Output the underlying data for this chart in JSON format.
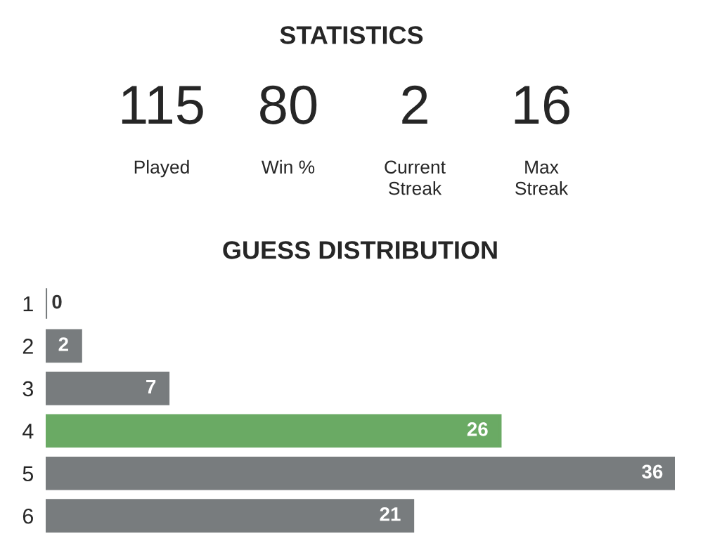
{
  "chart_data": [
    {
      "type": "other",
      "title": "STATISTICS",
      "categories": [
        "Played",
        "Win %",
        "Current\nStreak",
        "Max\nStreak"
      ],
      "values": [
        115,
        80,
        2,
        16
      ],
      "data_labels": true
    },
    {
      "type": "bar",
      "orientation": "horizontal",
      "title": "GUESS DISTRIBUTION",
      "categories": [
        "1",
        "2",
        "3",
        "4",
        "5",
        "6"
      ],
      "values": [
        0,
        2,
        7,
        26,
        36,
        21
      ],
      "colors": [
        "#787c7e",
        "#787c7e",
        "#787c7e",
        "#6aaa64",
        "#787c7e",
        "#787c7e"
      ],
      "data_labels": true,
      "tick_labels": "y",
      "grid": false,
      "legend": false
    }
  ]
}
